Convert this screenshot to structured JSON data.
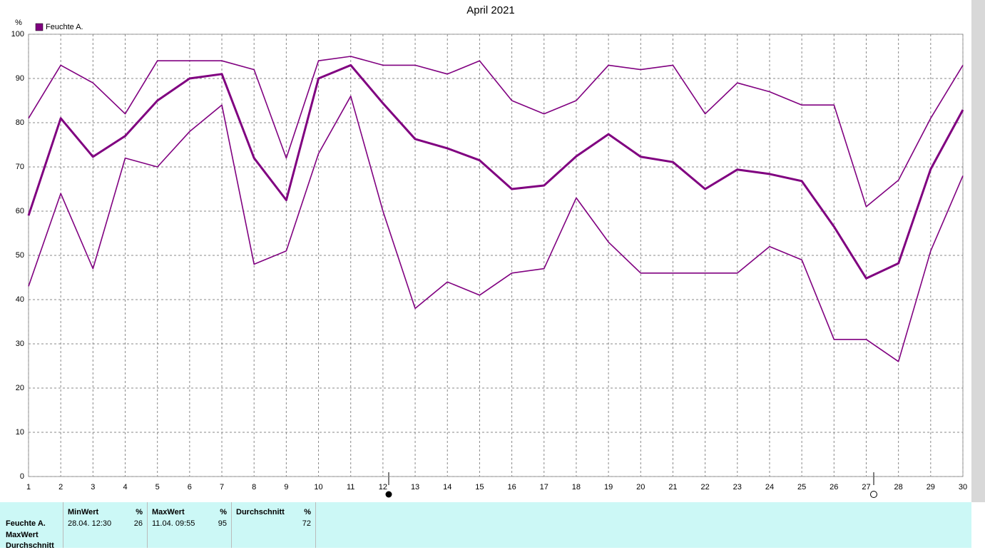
{
  "chart_data": {
    "type": "line",
    "title": "April 2021",
    "y_unit": "%",
    "x": [
      1,
      2,
      3,
      4,
      5,
      6,
      7,
      8,
      9,
      10,
      11,
      12,
      13,
      14,
      15,
      16,
      17,
      18,
      19,
      20,
      21,
      22,
      23,
      24,
      25,
      26,
      27,
      28,
      29,
      30
    ],
    "series": [
      {
        "name": "Feuchte A.",
        "color": "#800080",
        "values": [
          59,
          81,
          72.3,
          77,
          85,
          90,
          91,
          72,
          62.5,
          90,
          93,
          84.4,
          76.3,
          74.2,
          71.5,
          65,
          65.8,
          72.4,
          77.4,
          72.3,
          71.1,
          65,
          69.4,
          68.4,
          66.8,
          56.5,
          44.8,
          48.2,
          69.5,
          82.9
        ]
      },
      {
        "color": "#800080",
        "values": [
          81,
          93,
          89,
          82,
          94,
          94,
          94,
          92,
          72,
          94,
          95,
          93,
          93,
          91,
          94,
          85,
          82,
          85,
          93,
          92,
          93,
          82,
          89,
          87,
          84,
          84,
          61,
          67,
          81,
          93
        ]
      },
      {
        "color": "#800080",
        "values": [
          43,
          64,
          47,
          72,
          70,
          78,
          84,
          48,
          51,
          73,
          86,
          60,
          38,
          44,
          41,
          46,
          47,
          63,
          53,
          46,
          46,
          46,
          46,
          52,
          49,
          31,
          31,
          26,
          51,
          68
        ]
      }
    ],
    "xlim": [
      1,
      30
    ],
    "xticks": [
      1,
      2,
      3,
      4,
      5,
      6,
      7,
      8,
      9,
      10,
      11,
      12,
      13,
      14,
      15,
      16,
      17,
      18,
      19,
      20,
      21,
      22,
      23,
      24,
      25,
      26,
      27,
      28,
      29,
      30
    ],
    "ylim": [
      0,
      100
    ],
    "yticks": [
      0,
      10,
      20,
      30,
      40,
      50,
      60,
      70,
      80,
      90,
      100
    ],
    "grid": true
  },
  "table": {
    "row_labels": [
      "Feuchte A.",
      "MaxWert",
      "Durchschnitt"
    ],
    "columns": [
      {
        "header": "MinWert",
        "unit": "%",
        "time": "28.04.  12:30",
        "value": "26"
      },
      {
        "header": "MaxWert",
        "unit": "%",
        "time": "11.04.  09:55",
        "value": "95"
      },
      {
        "header": "Durchschnitt",
        "unit": "%",
        "value": "72"
      }
    ]
  }
}
